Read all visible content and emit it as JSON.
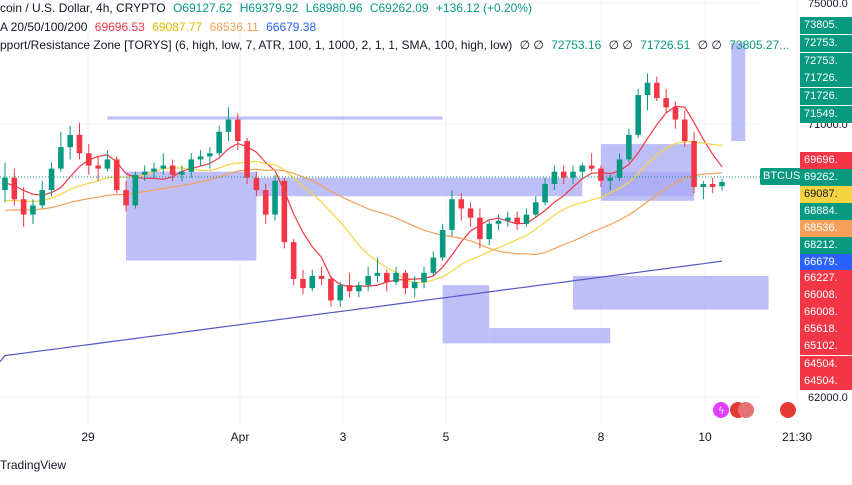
{
  "header": {
    "line1": {
      "title": "coin / U.S. Dollar, 4h, CRYPTO",
      "o": "O69127.62",
      "h": "H69379.92",
      "l": "L68980.96",
      "c": "C69262.09",
      "change": "+136.12 (+0.20%)"
    },
    "line2": {
      "label": "A 20/50/100/200",
      "v1": "69696.53",
      "v2": "69087.77",
      "v3": "68536.11",
      "v4": "66679.38"
    },
    "line3": {
      "label": "pport/Resistance Zone [TORYS] (6, high, low, 7, ATR, 100, 1, 1000, 2, 1, 1, SMA, 100, high, low)",
      "z1": "∅ ∅",
      "v1": "72753.16",
      "z2": "∅ ∅",
      "v2": "71726.51",
      "z3": "∅ ∅",
      "v3": "73805.27..."
    }
  },
  "footer": {
    "brand": "TradingView"
  },
  "symbol_badge": "BTCUSD",
  "colors": {
    "up": "#089981",
    "down": "#f23645",
    "ma20": "#f23645",
    "ma50": "#f5d442",
    "ma100": "#f5a05a",
    "ma200": "#5558c8",
    "zone": "#a9aaf5",
    "zone_dark": "#8a8cf0"
  },
  "chart_data": {
    "type": "candlestick",
    "title": "coin / U.S. Dollar, 4h, CRYPTO",
    "x_ticks": [
      "29",
      "Apr",
      "3",
      "5",
      "8",
      "10",
      "21:30"
    ],
    "y_ticks": [
      75000,
      71000,
      62000
    ],
    "ylim": [
      61500,
      75200
    ],
    "candles": [
      [
        69000,
        69900,
        68600,
        69400
      ],
      [
        69400,
        69700,
        68500,
        68700
      ],
      [
        68700,
        69100,
        67800,
        68200
      ],
      [
        68200,
        68700,
        67900,
        68500
      ],
      [
        68500,
        69300,
        68400,
        69000
      ],
      [
        69000,
        69900,
        68800,
        69700
      ],
      [
        69700,
        70900,
        69600,
        70400
      ],
      [
        70400,
        71100,
        70000,
        70800
      ],
      [
        70800,
        71200,
        70000,
        70200
      ],
      [
        70200,
        70500,
        69500,
        69800
      ],
      [
        69800,
        70100,
        69300,
        69700
      ],
      [
        69700,
        70300,
        69600,
        70000
      ],
      [
        70000,
        70100,
        68900,
        69000
      ],
      [
        69000,
        69300,
        68300,
        68500
      ],
      [
        68500,
        69600,
        68400,
        69500
      ],
      [
        69500,
        69800,
        69300,
        69600
      ],
      [
        69600,
        69900,
        69400,
        69700
      ],
      [
        69700,
        70200,
        69500,
        69800
      ],
      [
        69800,
        70000,
        69300,
        69500
      ],
      [
        69500,
        69800,
        69300,
        69600
      ],
      [
        69600,
        70200,
        69400,
        70000
      ],
      [
        70000,
        70300,
        69800,
        70100
      ],
      [
        70100,
        70400,
        69700,
        70200
      ],
      [
        70200,
        71100,
        70100,
        70900
      ],
      [
        70900,
        71700,
        70600,
        71300
      ],
      [
        71300,
        71500,
        70300,
        70600
      ],
      [
        70600,
        70700,
        69200,
        69400
      ],
      [
        69400,
        69600,
        68800,
        69000
      ],
      [
        69000,
        69200,
        67900,
        68200
      ],
      [
        68200,
        69500,
        68000,
        69300
      ],
      [
        69300,
        69400,
        67100,
        67300
      ],
      [
        67300,
        67400,
        65900,
        66100
      ],
      [
        66100,
        66400,
        65600,
        65800
      ],
      [
        65800,
        66400,
        65700,
        66200
      ],
      [
        66200,
        66500,
        65900,
        66100
      ],
      [
        66100,
        66200,
        65200,
        65400
      ],
      [
        65400,
        66000,
        65200,
        65900
      ],
      [
        65900,
        66300,
        65500,
        65700
      ],
      [
        65700,
        66000,
        65500,
        65900
      ],
      [
        65900,
        66500,
        65700,
        66200
      ],
      [
        66200,
        66800,
        66000,
        66300
      ],
      [
        66300,
        66400,
        65700,
        66000
      ],
      [
        66000,
        66500,
        65900,
        66300
      ],
      [
        66300,
        66400,
        65600,
        65800
      ],
      [
        65800,
        66200,
        65500,
        66000
      ],
      [
        66000,
        66500,
        65800,
        66300
      ],
      [
        66300,
        67000,
        66200,
        66800
      ],
      [
        66800,
        67900,
        66700,
        67700
      ],
      [
        67700,
        69000,
        67500,
        68700
      ],
      [
        68700,
        68900,
        68000,
        68400
      ],
      [
        68400,
        68600,
        67800,
        68100
      ],
      [
        68100,
        68400,
        67100,
        67400
      ],
      [
        67400,
        68000,
        67200,
        67900
      ],
      [
        67900,
        68200,
        67700,
        68000
      ],
      [
        68000,
        68300,
        67800,
        68100
      ],
      [
        68100,
        68300,
        67700,
        67900
      ],
      [
        67900,
        68400,
        67800,
        68200
      ],
      [
        68200,
        68800,
        68100,
        68600
      ],
      [
        68600,
        69400,
        68500,
        69200
      ],
      [
        69200,
        69800,
        69000,
        69600
      ],
      [
        69600,
        69800,
        69200,
        69400
      ],
      [
        69400,
        69800,
        69200,
        69600
      ],
      [
        69600,
        69900,
        69400,
        69800
      ],
      [
        69800,
        70200,
        69600,
        69700
      ],
      [
        69700,
        69800,
        69100,
        69300
      ],
      [
        69300,
        69500,
        69000,
        69400
      ],
      [
        69400,
        70200,
        69300,
        70000
      ],
      [
        70000,
        71000,
        69900,
        70800
      ],
      [
        70800,
        72300,
        70700,
        72100
      ],
      [
        72100,
        72800,
        71600,
        72500
      ],
      [
        72500,
        72700,
        71900,
        72000
      ],
      [
        72000,
        72300,
        71500,
        71700
      ],
      [
        71700,
        71900,
        71000,
        71300
      ],
      [
        71300,
        71600,
        70400,
        70600
      ],
      [
        70600,
        70900,
        68900,
        69100
      ],
      [
        69100,
        69300,
        68700,
        69200
      ],
      [
        69200,
        69400,
        68900,
        69100
      ],
      [
        69127.62,
        69379.92,
        68980.96,
        69262.09
      ]
    ],
    "series": [
      {
        "name": "MA 20",
        "last": 69696.53
      },
      {
        "name": "MA 50",
        "last": 69087.77
      },
      {
        "name": "MA 100",
        "last": 68536.11
      },
      {
        "name": "MA 200",
        "last": 66679.38
      }
    ],
    "price_labels": [
      {
        "text": "73805.",
        "bg": "#089981",
        "fg": "#ffffff"
      },
      {
        "text": "72753.",
        "bg": "#089981",
        "fg": "#ffffff"
      },
      {
        "text": "72753.",
        "bg": "#089981",
        "fg": "#ffffff"
      },
      {
        "text": "71726.",
        "bg": "#089981",
        "fg": "#ffffff"
      },
      {
        "text": "71726.",
        "bg": "#089981",
        "fg": "#ffffff"
      },
      {
        "text": "71549.",
        "bg": "#089981",
        "fg": "#ffffff"
      },
      {
        "text": "69696.",
        "bg": "#f23645",
        "fg": "#ffffff"
      },
      {
        "text": "69262.",
        "bg": "#089981",
        "fg": "#ffffff"
      },
      {
        "text": "69087.",
        "bg": "#f5d442",
        "fg": "#131722"
      },
      {
        "text": "68884.",
        "bg": "#089981",
        "fg": "#ffffff"
      },
      {
        "text": "68536.",
        "bg": "#f5a05a",
        "fg": "#ffffff"
      },
      {
        "text": "68212.",
        "bg": "#089981",
        "fg": "#ffffff"
      },
      {
        "text": "66679.",
        "bg": "#2962ff",
        "fg": "#ffffff"
      },
      {
        "text": "66227.",
        "bg": "#f23645",
        "fg": "#ffffff"
      },
      {
        "text": "66008.",
        "bg": "#f23645",
        "fg": "#ffffff"
      },
      {
        "text": "66008.",
        "bg": "#f23645",
        "fg": "#ffffff"
      },
      {
        "text": "65618.",
        "bg": "#f23645",
        "fg": "#ffffff"
      },
      {
        "text": "65102.",
        "bg": "#f23645",
        "fg": "#ffffff"
      },
      {
        "text": "64504.",
        "bg": "#f23645",
        "fg": "#ffffff"
      },
      {
        "text": "64504.",
        "bg": "#f23645",
        "fg": "#ffffff"
      }
    ],
    "zones": [
      {
        "x0": 13,
        "x1": 27,
        "y_low": 66700,
        "y_high": 69600
      },
      {
        "x0": 27,
        "x1": 62,
        "y_low": 68800,
        "y_high": 69400
      },
      {
        "x0": 11,
        "x1": 47,
        "y_low": 71300,
        "y_high": 71400
      },
      {
        "x0": 78,
        "x1": 79.5,
        "y_low": 70600,
        "y_high": 73805
      },
      {
        "x0": 64,
        "x1": 74,
        "y_low": 68650,
        "y_high": 70500
      },
      {
        "x0": 64,
        "x1": 74,
        "y_low": 68800,
        "y_high": 69600
      },
      {
        "x0": 47,
        "x1": 52,
        "y_low": 64000,
        "y_high": 65900
      },
      {
        "x0": 52,
        "x1": 65,
        "y_low": 64000,
        "y_high": 64500
      },
      {
        "x0": 61,
        "x1": 82,
        "y_low": 65100,
        "y_high": 66200
      }
    ]
  }
}
